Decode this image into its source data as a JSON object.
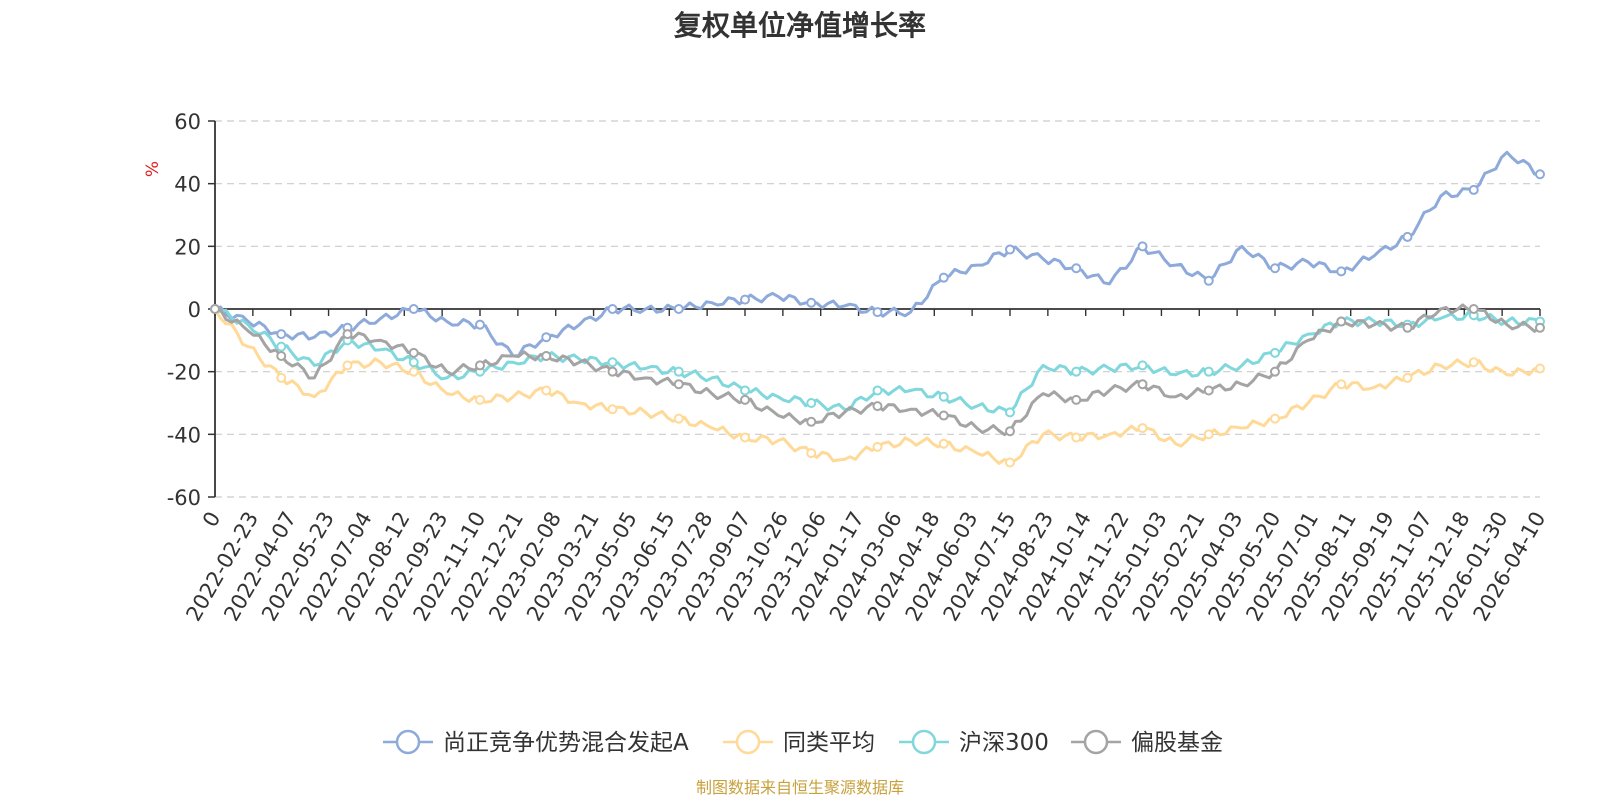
{
  "chart_data": {
    "type": "line",
    "title": "复权单位净值增长率",
    "ylabel": "%",
    "ylim": [
      -60,
      60
    ],
    "yticks": [
      60,
      40,
      20,
      0,
      -20,
      -40,
      -60
    ],
    "grid": true,
    "legend_position": "bottom-center",
    "x_ticks": [
      "0",
      "2022-02-23",
      "2022-04-07",
      "2022-05-23",
      "2022-07-04",
      "2022-08-12",
      "2022-09-23",
      "2022-11-10",
      "2022-12-21",
      "2023-02-08",
      "2023-03-21",
      "2023-05-05",
      "2023-06-15",
      "2023-07-28",
      "2023-09-07",
      "2023-10-26",
      "2023-12-06",
      "2024-01-17",
      "2024-03-06",
      "2024-04-18",
      "2024-06-03",
      "2024-07-15",
      "2024-08-23",
      "2024-10-14",
      "2024-11-22",
      "2025-01-03",
      "2025-02-21",
      "2025-04-03",
      "2025-05-20",
      "2025-07-01",
      "2025-08-11",
      "2025-09-19",
      "2025-11-07",
      "2025-12-18",
      "2026-01-30",
      "2026-04-10"
    ],
    "series": [
      {
        "name": "尚正竞争优势混合发起A",
        "color": "#8eaadb",
        "values": [
          0,
          -4,
          -8,
          -9,
          -6,
          -3,
          0,
          -4,
          -5,
          -15,
          -9,
          -5,
          0,
          0,
          0,
          2,
          3,
          4,
          2,
          1,
          -1,
          -1,
          10,
          14,
          19,
          16,
          13,
          8,
          20,
          14,
          9,
          20,
          13,
          15,
          12,
          17,
          23,
          36,
          38,
          50,
          43
        ]
      },
      {
        "name": "同类平均",
        "color": "#ffd998",
        "values": [
          0,
          -12,
          -22,
          -28,
          -18,
          -17,
          -20,
          -27,
          -29,
          -28,
          -26,
          -30,
          -32,
          -33,
          -35,
          -38,
          -41,
          -42,
          -46,
          -48,
          -44,
          -42,
          -43,
          -46,
          -49,
          -40,
          -41,
          -40,
          -38,
          -43,
          -40,
          -38,
          -35,
          -30,
          -24,
          -25,
          -22,
          -18,
          -17,
          -21,
          -19
        ]
      },
      {
        "name": "沪深300",
        "color": "#80d7dc",
        "values": [
          0,
          -5,
          -12,
          -18,
          -10,
          -13,
          -17,
          -22,
          -20,
          -17,
          -15,
          -16,
          -17,
          -19,
          -20,
          -22,
          -26,
          -28,
          -30,
          -32,
          -26,
          -26,
          -28,
          -31,
          -33,
          -18,
          -20,
          -19,
          -18,
          -21,
          -20,
          -18,
          -14,
          -8,
          -4,
          -4,
          -5,
          -3,
          -2,
          -4,
          -4
        ]
      },
      {
        "name": "偏股基金",
        "color": "#a4a4a4",
        "values": [
          0,
          -7,
          -15,
          -22,
          -8,
          -10,
          -14,
          -20,
          -18,
          -15,
          -15,
          -17,
          -20,
          -22,
          -24,
          -27,
          -29,
          -34,
          -36,
          -33,
          -31,
          -32,
          -34,
          -38,
          -39,
          -27,
          -29,
          -26,
          -24,
          -28,
          -26,
          -24,
          -20,
          -10,
          -4,
          -5,
          -6,
          0,
          0,
          -5,
          -6
        ]
      }
    ]
  },
  "source_text": "制图数据来自恒生聚源数据库"
}
